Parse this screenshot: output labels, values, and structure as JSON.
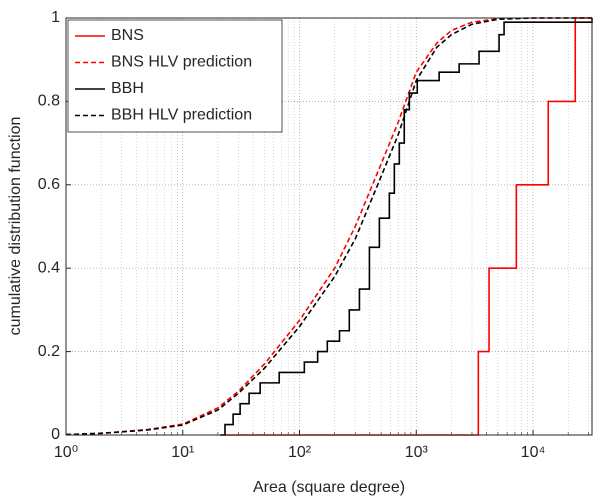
{
  "chart_data": {
    "type": "line",
    "xlabel": "Area (square degree)",
    "ylabel": "cumulative distribution function",
    "xscale": "log",
    "xlim": [
      1,
      32000
    ],
    "ylim": [
      0,
      1
    ],
    "xticks": [
      {
        "value": 1,
        "label": "10⁰"
      },
      {
        "value": 10,
        "label": "10¹"
      },
      {
        "value": 100,
        "label": "10²"
      },
      {
        "value": 1000,
        "label": "10³"
      },
      {
        "value": 10000,
        "label": "10⁴"
      }
    ],
    "yticks": [
      0,
      0.2,
      0.4,
      0.6,
      0.8,
      1
    ],
    "grid": true,
    "minor_grid": true,
    "legend": "upper left",
    "series": [
      {
        "name": "BNS",
        "color": "#ff0000",
        "linestyle": "solid",
        "step": true,
        "x": [
          21,
          3400,
          4200,
          7200,
          13500,
          23000,
          32000
        ],
        "values": [
          0,
          0.2,
          0.4,
          0.6,
          0.8,
          1,
          1
        ]
      },
      {
        "name": "BNS HLV prediction",
        "color": "#ff0000",
        "linestyle": "dashed",
        "step": false,
        "x": [
          1,
          2,
          5,
          10,
          20,
          30,
          50,
          100,
          200,
          300,
          500,
          700,
          1000,
          1500,
          2000,
          3000,
          5000,
          10000,
          32000
        ],
        "values": [
          0.001,
          0.004,
          0.013,
          0.026,
          0.065,
          0.105,
          0.17,
          0.275,
          0.4,
          0.5,
          0.65,
          0.75,
          0.87,
          0.94,
          0.97,
          0.99,
          0.998,
          1,
          1
        ]
      },
      {
        "name": "BBH",
        "color": "#000000",
        "linestyle": "solid",
        "step": true,
        "x": [
          21,
          23,
          27,
          31,
          37,
          46,
          67,
          110,
          143,
          173,
          220,
          267,
          326,
          397,
          483,
          588,
          649,
          716,
          789,
          872,
          1020,
          1570,
          2330,
          3450,
          5120,
          5650,
          32000
        ],
        "values": [
          0,
          0.025,
          0.05,
          0.075,
          0.1,
          0.125,
          0.15,
          0.175,
          0.2,
          0.225,
          0.25,
          0.3,
          0.35,
          0.45,
          0.52,
          0.58,
          0.65,
          0.7,
          0.78,
          0.82,
          0.85,
          0.87,
          0.89,
          0.92,
          0.96,
          0.99,
          1
        ]
      },
      {
        "name": "BBH HLV prediction",
        "color": "#000000",
        "linestyle": "dashed",
        "step": false,
        "x": [
          1,
          2,
          5,
          10,
          20,
          30,
          50,
          100,
          200,
          300,
          500,
          700,
          1000,
          1500,
          2000,
          3000,
          5000,
          10000,
          32000
        ],
        "values": [
          0.001,
          0.004,
          0.012,
          0.024,
          0.06,
          0.1,
          0.16,
          0.26,
          0.38,
          0.47,
          0.62,
          0.72,
          0.85,
          0.93,
          0.96,
          0.985,
          0.997,
          1,
          1
        ]
      }
    ]
  }
}
